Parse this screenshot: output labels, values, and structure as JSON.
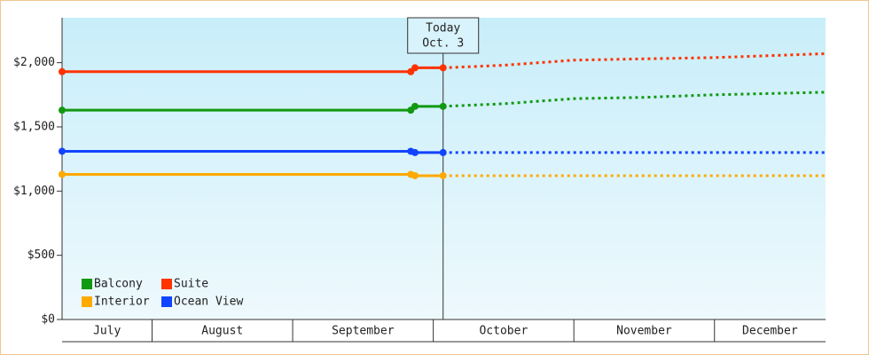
{
  "chart_data": {
    "type": "line",
    "xlim": [
      7.36,
      12.79
    ],
    "xticks": [
      {
        "value": 7,
        "label": "July"
      },
      {
        "value": 8,
        "label": "August"
      },
      {
        "value": 9,
        "label": "September"
      },
      {
        "value": 10,
        "label": "October"
      },
      {
        "value": 11,
        "label": "November"
      },
      {
        "value": 12,
        "label": "December"
      }
    ],
    "ylim": [
      0,
      2350
    ],
    "yticks": [
      {
        "value": 0,
        "label": "$0"
      },
      {
        "value": 500,
        "label": "$500"
      },
      {
        "value": 1000,
        "label": "$1,000"
      },
      {
        "value": 1500,
        "label": "$1,500"
      },
      {
        "value": 2000,
        "label": "$2,000"
      }
    ],
    "annotation": {
      "lines": [
        "Today",
        "Oct. 3"
      ],
      "x": 10.07
    },
    "legend": "bottom-left",
    "x": [
      7.36,
      9.84,
      9.87,
      10.07,
      10.5,
      11,
      11.5,
      12,
      12.79
    ],
    "series": [
      {
        "name": "Balcony",
        "color": "#119911",
        "values": [
          1630,
          1630,
          1660,
          1660,
          1680,
          1720,
          1730,
          1750,
          1770
        ]
      },
      {
        "name": "Interior",
        "color": "#ffaa00",
        "values": [
          1130,
          1130,
          1120,
          1120,
          1120,
          1120,
          1120,
          1120,
          1120
        ]
      },
      {
        "name": "Suite",
        "color": "#ff3300",
        "values": [
          1930,
          1930,
          1960,
          1960,
          1980,
          2020,
          2030,
          2040,
          2070
        ]
      },
      {
        "name": "Ocean View",
        "color": "#1144ff",
        "values": [
          1310,
          1310,
          1300,
          1300,
          1300,
          1300,
          1300,
          1300,
          1300
        ]
      }
    ]
  }
}
